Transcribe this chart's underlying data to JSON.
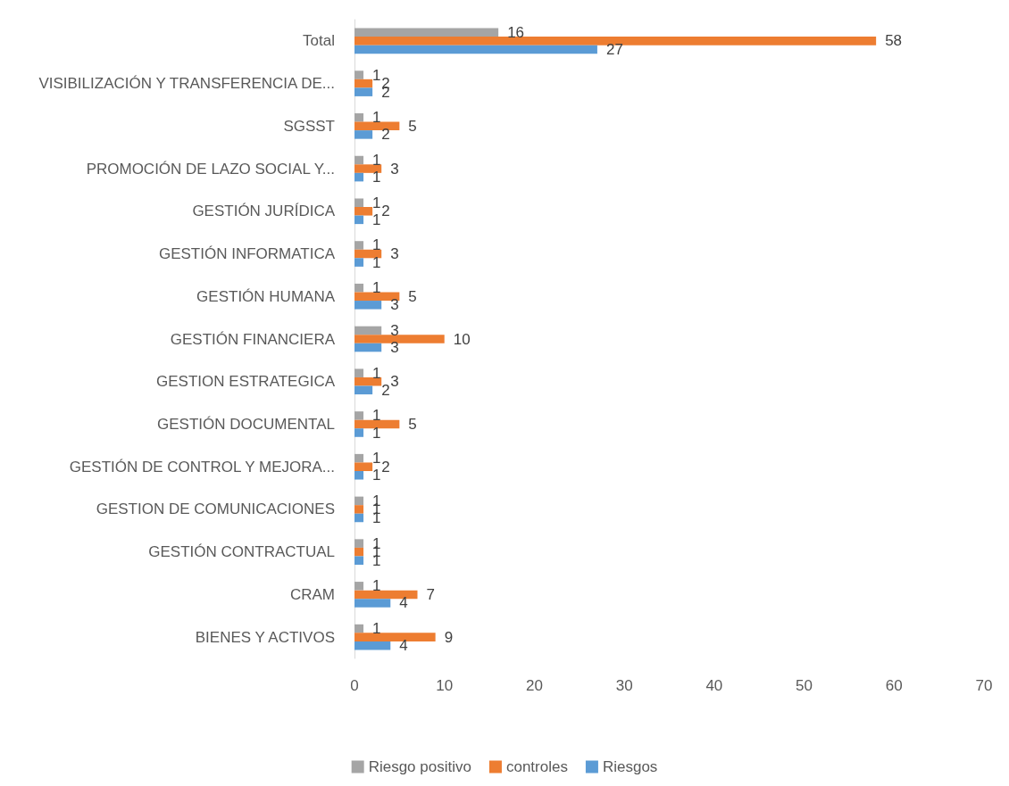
{
  "chart_data": {
    "type": "bar",
    "orientation": "horizontal",
    "categories": [
      "Total",
      "VISIBILIZACIÓN Y TRANSFERENCIA DE...",
      "SGSST",
      "PROMOCIÓN DE LAZO SOCIAL Y...",
      "GESTIÓN JURÍDICA",
      "GESTIÓN INFORMATICA",
      "GESTIÓN HUMANA",
      "GESTIÓN FINANCIERA",
      "GESTION ESTRATEGICA",
      "GESTIÓN DOCUMENTAL",
      "GESTIÓN DE CONTROL Y MEJORA...",
      "GESTION DE COMUNICACIONES",
      "GESTIÓN CONTRACTUAL",
      "CRAM",
      "BIENES Y ACTIVOS"
    ],
    "series": [
      {
        "name": "Riesgo positivo",
        "color": "#a5a5a5",
        "values": [
          16,
          1,
          1,
          1,
          1,
          1,
          1,
          3,
          1,
          1,
          1,
          1,
          1,
          1,
          1
        ]
      },
      {
        "name": "controles",
        "color": "#ed7d31",
        "values": [
          58,
          2,
          5,
          3,
          2,
          3,
          5,
          10,
          3,
          5,
          2,
          1,
          1,
          7,
          9
        ]
      },
      {
        "name": "Riesgos",
        "color": "#5b9bd5",
        "values": [
          27,
          2,
          2,
          1,
          1,
          1,
          3,
          3,
          2,
          1,
          1,
          1,
          1,
          4,
          4
        ]
      }
    ],
    "xlim": [
      0,
      70
    ],
    "xticks": [
      0,
      10,
      20,
      30,
      40,
      50,
      60,
      70
    ],
    "data_labels": true,
    "grid": false,
    "legend": "bottom"
  }
}
